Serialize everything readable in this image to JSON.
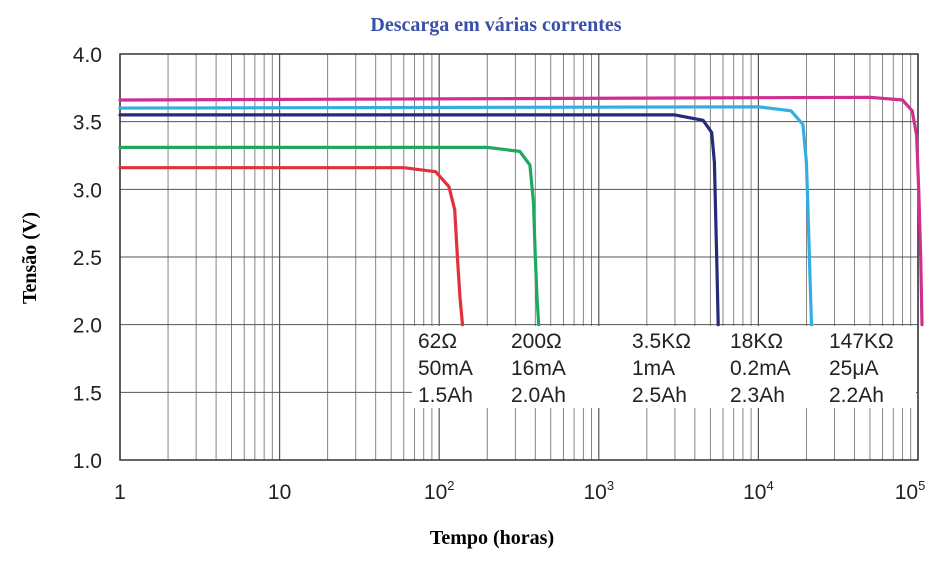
{
  "chart_data": {
    "type": "line",
    "title": "Descarga em várias correntes",
    "title_color": "#3a4fa8",
    "xlabel": "Tempo (horas)",
    "ylabel": "Tensão (V)",
    "x_scale": "log",
    "xlim": [
      1,
      100000
    ],
    "ylim": [
      1.0,
      4.0
    ],
    "grid": true,
    "x_ticks": [
      {
        "value": 1,
        "base": "1",
        "exp": ""
      },
      {
        "value": 10,
        "base": "10",
        "exp": ""
      },
      {
        "value": 100,
        "base": "10",
        "exp": "2"
      },
      {
        "value": 1000,
        "base": "10",
        "exp": "3"
      },
      {
        "value": 10000,
        "base": "10",
        "exp": "4"
      },
      {
        "value": 100000,
        "base": "10",
        "exp": "5"
      }
    ],
    "y_ticks": [
      {
        "value": 1.0,
        "label": "1.0"
      },
      {
        "value": 1.5,
        "label": "1.5"
      },
      {
        "value": 2.0,
        "label": "2.0"
      },
      {
        "value": 2.5,
        "label": "2.5"
      },
      {
        "value": 3.0,
        "label": "3.0"
      },
      {
        "value": 3.5,
        "label": "3.5"
      },
      {
        "value": 4.0,
        "label": "4.0"
      }
    ],
    "series": [
      {
        "color": "#e0323c",
        "points": [
          [
            1,
            3.16
          ],
          [
            60,
            3.16
          ],
          [
            95,
            3.13
          ],
          [
            115,
            3.02
          ],
          [
            125,
            2.85
          ],
          [
            130,
            2.5
          ],
          [
            135,
            2.2
          ],
          [
            140,
            2.0
          ]
        ],
        "annotation": [
          "62Ω",
          "50mA",
          "1.5Ah"
        ]
      },
      {
        "color": "#1ea860",
        "points": [
          [
            1,
            3.31
          ],
          [
            200,
            3.31
          ],
          [
            320,
            3.28
          ],
          [
            370,
            3.18
          ],
          [
            390,
            2.9
          ],
          [
            400,
            2.5
          ],
          [
            410,
            2.2
          ],
          [
            420,
            2.0
          ]
        ],
        "annotation": [
          "200Ω",
          "16mA",
          "2.0Ah"
        ]
      },
      {
        "color": "#262a7a",
        "points": [
          [
            1,
            3.55
          ],
          [
            3000,
            3.55
          ],
          [
            4500,
            3.51
          ],
          [
            5100,
            3.42
          ],
          [
            5300,
            3.2
          ],
          [
            5400,
            2.8
          ],
          [
            5500,
            2.4
          ],
          [
            5600,
            2.0
          ]
        ],
        "annotation": [
          "3.5KΩ",
          "1mA",
          "2.5Ah"
        ]
      },
      {
        "color": "#34aee0",
        "points": [
          [
            1,
            3.6
          ],
          [
            10000,
            3.61
          ],
          [
            16000,
            3.58
          ],
          [
            19000,
            3.48
          ],
          [
            20000,
            3.2
          ],
          [
            20500,
            2.8
          ],
          [
            21000,
            2.4
          ],
          [
            21500,
            2.0
          ]
        ],
        "annotation": [
          "18KΩ",
          "0.2mA",
          "2.3Ah"
        ]
      },
      {
        "color": "#d12f8f",
        "points": [
          [
            1,
            3.66
          ],
          [
            50000,
            3.68
          ],
          [
            80000,
            3.66
          ],
          [
            92000,
            3.58
          ],
          [
            98000,
            3.4
          ],
          [
            101000,
            3.0
          ],
          [
            104000,
            2.5
          ],
          [
            106000,
            2.0
          ]
        ],
        "annotation": [
          "147KΩ",
          "25μA",
          "2.2Ah"
        ]
      }
    ]
  }
}
